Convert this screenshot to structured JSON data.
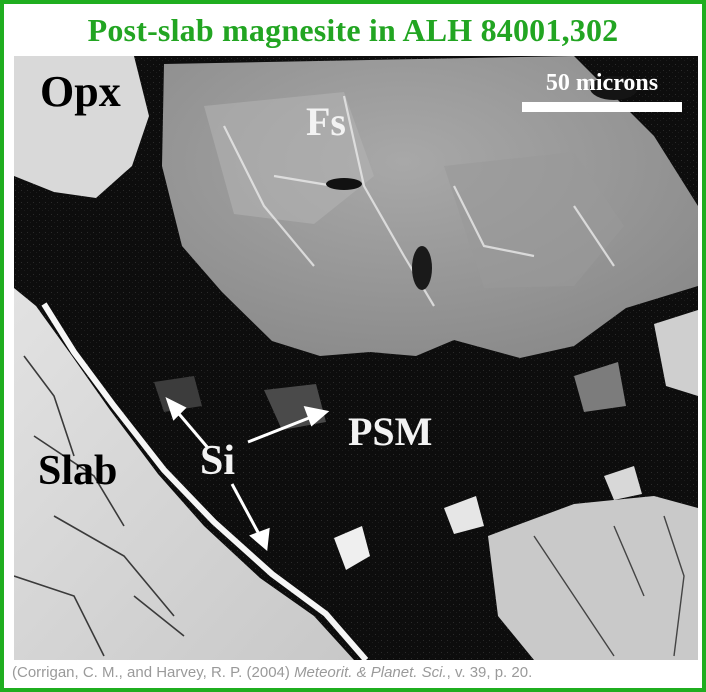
{
  "title": "Post-slab magnesite in ALH 84001,302",
  "scale_bar": {
    "label": "50 microns"
  },
  "labels": {
    "opx": "Opx",
    "fs": "Fs",
    "psm": "PSM",
    "si": "Si",
    "slab": "Slab"
  },
  "citation": {
    "prefix": "(Corrigan, C. M., and Harvey, R. P. (2004) ",
    "journal": "Meteorit. & Planet. Sci.",
    "suffix": ", v. 39, p. 20."
  },
  "colors": {
    "border": "#1fae1f",
    "title": "#22a522",
    "citation": "#9a9a9a"
  }
}
